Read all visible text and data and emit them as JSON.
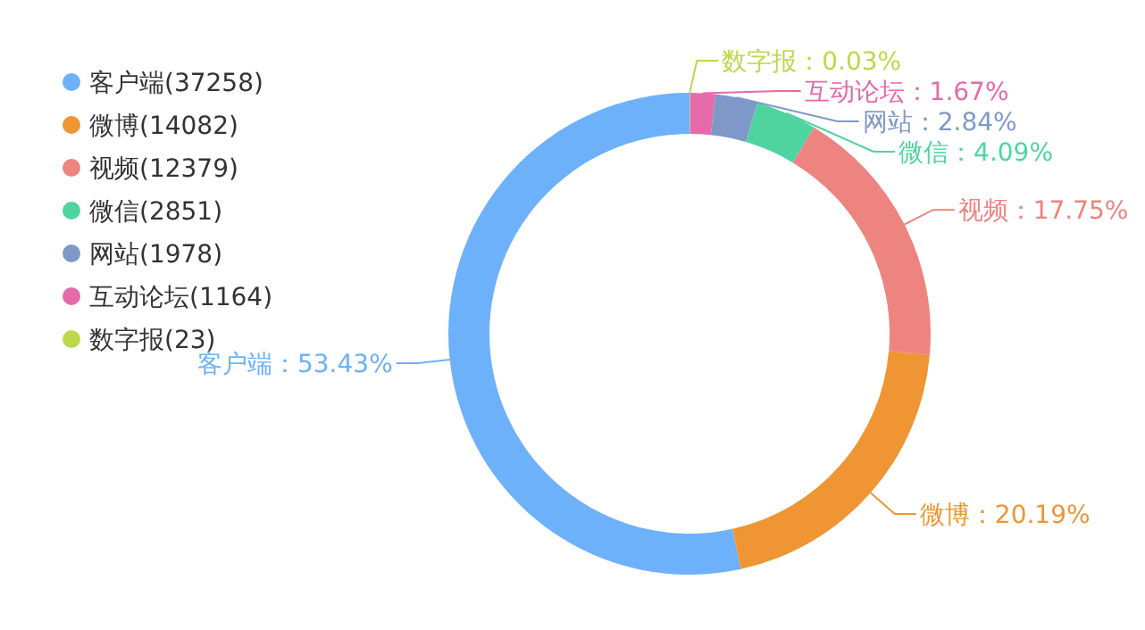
{
  "chart_data": {
    "type": "donut",
    "categories": [
      "客户端(37258)",
      "微博(14082)",
      "视频(12379)",
      "微信(2851)",
      "网站(1978)",
      "互动论坛(1164)",
      "数字报(23)"
    ],
    "values": [
      53.43,
      20.19,
      17.75,
      4.09,
      2.84,
      1.67,
      0.03
    ],
    "value_labels": [
      "客户端：53.43%",
      "微博：20.19%",
      "视频：17.75%",
      "微信：4.09%",
      "网站：2.84%",
      "互动论坛：1.67%",
      "数字报：0.03%"
    ],
    "colors": [
      "#6eb1fb",
      "#ef9533",
      "#ee847f",
      "#4fd4a0",
      "#7f98c8",
      "#e46aa9",
      "#bdd84b"
    ],
    "legend": "left"
  }
}
